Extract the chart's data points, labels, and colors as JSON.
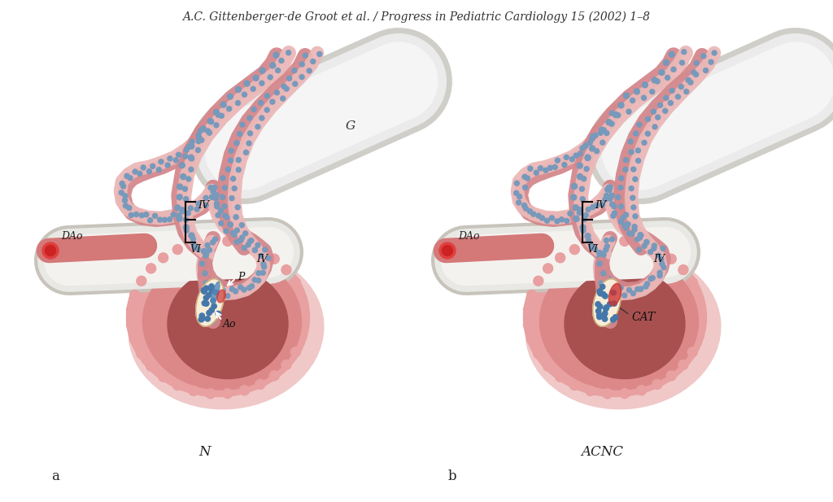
{
  "title": "A.C. Gittenberger-de Groot et al. / Progress in Pediatric Cardiology 15 (2002) 1–8",
  "title_fontsize": 10,
  "bg_color": "#ffffff",
  "label_a": "a",
  "label_b": "b",
  "label_N": "N",
  "label_ACNC": "ACNC",
  "label_G": "G",
  "label_DAo_a": "DAo",
  "label_DAo_b": "DAo",
  "label_IV_a1": "IV",
  "label_IV_a2": "IV",
  "label_VI_a": "VI",
  "label_IV_b1": "IV",
  "label_IV_b2": "IV",
  "label_VI_b": "VI",
  "label_P": "P",
  "label_Ao": "Ao",
  "label_CAT": "CAT",
  "pink_arch": "#d4888c",
  "pink_light": "#ebb8b8",
  "pink_heart_outer": "#e8a0a0",
  "pink_heart_mid": "#dc8888",
  "pink_heart_inner": "#c06868",
  "pink_chamber": "#a85050",
  "pink_dao": "#d47878",
  "white_vessel": "#f0efee",
  "white_vessel_shadow": "#d8d5d0",
  "blue_dot": "#7799bb",
  "cream": "#f8edd8",
  "red_cap": "#cc3333",
  "fig_width": 10.24,
  "fig_height": 6.17
}
